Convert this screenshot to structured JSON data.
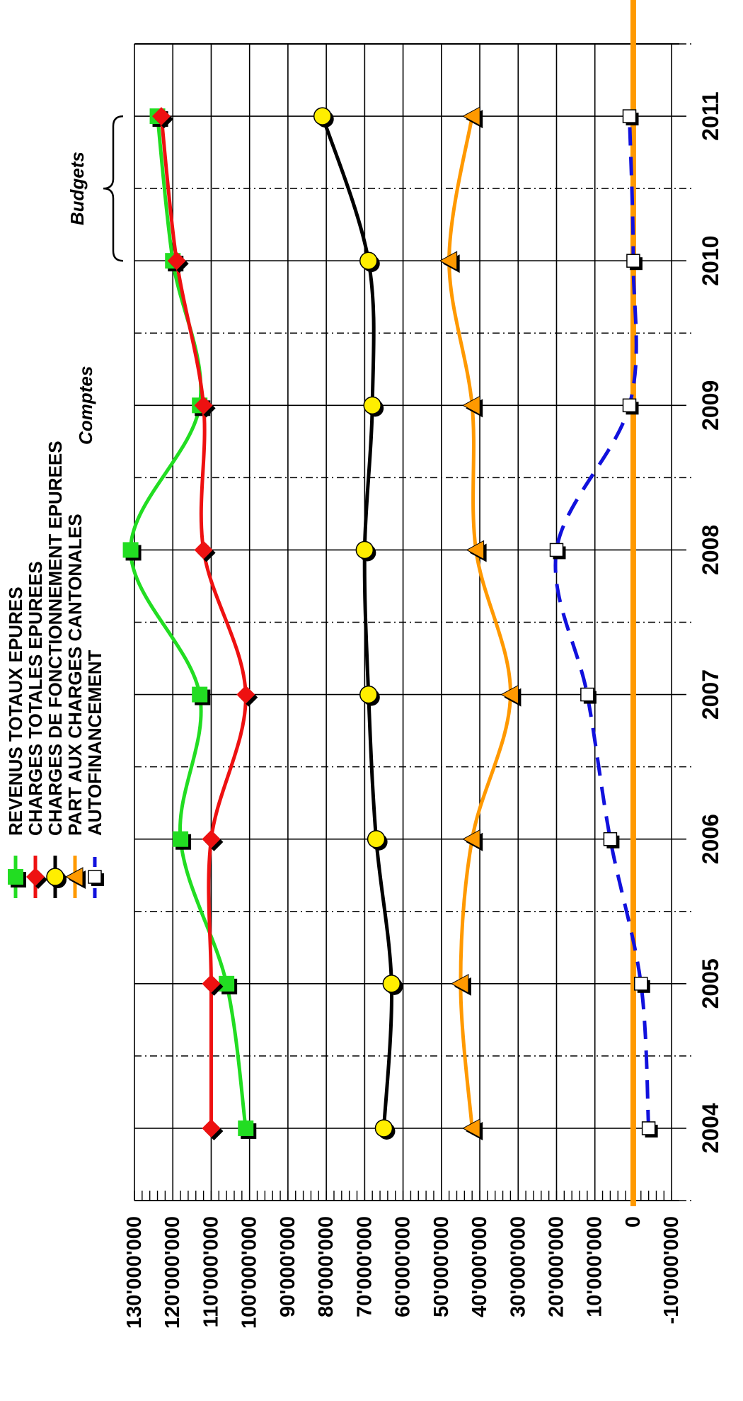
{
  "chart_data": {
    "type": "line",
    "orientation": "rotated-90-counterclockwise",
    "x": [
      2004,
      2005,
      2006,
      2007,
      2008,
      2009,
      2010,
      2011
    ],
    "x_tick_labels": [
      "2004",
      "2005",
      "2006",
      "2007",
      "2008",
      "2009",
      "2010",
      "2011"
    ],
    "y_tick_values": [
      -10000000,
      0,
      10000000,
      20000000,
      30000000,
      40000000,
      50000000,
      60000000,
      70000000,
      80000000,
      90000000,
      100000000,
      110000000,
      120000000,
      130000000
    ],
    "y_tick_labels": [
      "-10'000'000",
      "0",
      "10'000'000",
      "20'000'000",
      "30'000'000",
      "40'000'000",
      "50'000'000",
      "60'000'000",
      "70'000'000",
      "80'000'000",
      "90'000'000",
      "100'000'000",
      "110'000'000",
      "120'000'000",
      "130'000'000"
    ],
    "ylim": [
      -12000000,
      130000000
    ],
    "grid": true,
    "legend_position": "top-left",
    "series": [
      {
        "name": "REVENUS TOTAUX EPURES",
        "color": "#22dd22",
        "marker": "square",
        "values": [
          101000000,
          106000000,
          118000000,
          113000000,
          131000000,
          113000000,
          120000000,
          124000000
        ]
      },
      {
        "name": "CHARGES TOTALES EPUREES",
        "color": "#ee1111",
        "marker": "diamond",
        "values": [
          110000000,
          110000000,
          110000000,
          101000000,
          112000000,
          112000000,
          119000000,
          123000000
        ]
      },
      {
        "name": "CHARGES DE FONCTIONNEMENT EPUREES",
        "color": "#000000",
        "marker": "circle",
        "values": [
          65000000,
          63000000,
          67000000,
          69000000,
          70000000,
          68000000,
          69000000,
          81000000
        ]
      },
      {
        "name": "PART AUX CHARGES CANTONALES",
        "color": "#ff9900",
        "marker": "triangle",
        "values": [
          42000000,
          45000000,
          42000000,
          32000000,
          41000000,
          42000000,
          48000000,
          42000000
        ]
      },
      {
        "name": "AUTOFINANCEMENT",
        "color": "#1111dd",
        "marker": "open-square",
        "dashed": true,
        "values": [
          -4000000,
          -2000000,
          6000000,
          12000000,
          20000000,
          1000000,
          0,
          1000000
        ]
      }
    ],
    "annotations": [
      {
        "text": "Comptes",
        "at_x": 2009
      },
      {
        "text": "Budgets",
        "from_x": 2010,
        "to_x": 2011
      }
    ],
    "zero_line_color": "#ff9900"
  }
}
